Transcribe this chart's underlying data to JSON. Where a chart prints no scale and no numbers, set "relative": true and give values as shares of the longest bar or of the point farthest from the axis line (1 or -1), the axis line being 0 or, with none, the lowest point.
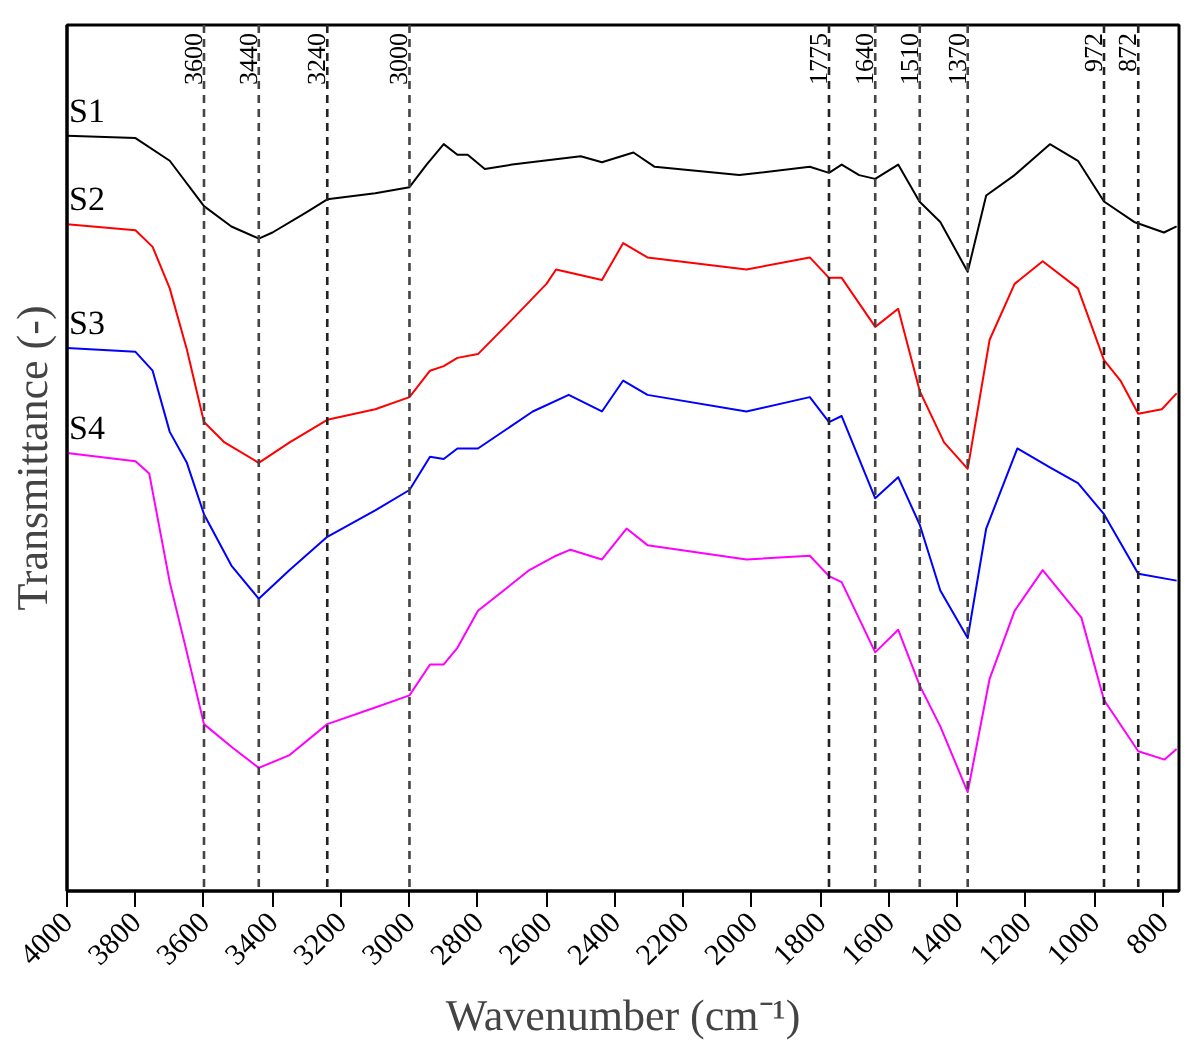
{
  "chart_data": {
    "type": "line",
    "xlabel": "Wavenumber (cm⁻¹)",
    "ylabel": "Transmittance (-)",
    "relative": true,
    "xlim": [
      4000,
      753
    ],
    "xticks": [
      4000,
      3800,
      3600,
      3400,
      3200,
      3000,
      2800,
      2600,
      2400,
      2200,
      2000,
      1800,
      1600,
      1400,
      1200,
      1000,
      800
    ],
    "series": [
      {
        "name": "S1",
        "color": "#000000",
        "x": [
          4000,
          3800,
          3700,
          3600,
          3520,
          3440,
          3400,
          3300,
          3240,
          3100,
          3000,
          2950,
          2900,
          2860,
          2830,
          2780,
          2700,
          2500,
          2438,
          2346,
          2284,
          2037,
          1831,
          1775,
          1738,
          1687,
          1640,
          1573,
          1511,
          1450,
          1370,
          1316,
          1233,
          1130,
          1048,
          972,
          884,
          797,
          760
        ],
        "values": [
          1.0,
          0.997,
          0.967,
          0.907,
          0.88,
          0.864,
          0.872,
          0.899,
          0.916,
          0.924,
          0.932,
          0.962,
          0.989,
          0.975,
          0.975,
          0.956,
          0.962,
          0.973,
          0.965,
          0.978,
          0.959,
          0.948,
          0.959,
          0.951,
          0.962,
          0.948,
          0.943,
          0.962,
          0.913,
          0.886,
          0.82,
          0.921,
          0.948,
          0.989,
          0.967,
          0.913,
          0.886,
          0.872,
          0.88
        ]
      },
      {
        "name": "S2",
        "color": "#ff0000",
        "x": [
          4000,
          3800,
          3750,
          3700,
          3650,
          3600,
          3540,
          3440,
          3350,
          3240,
          3100,
          3000,
          2940,
          2900,
          2860,
          2800,
          2700,
          2600,
          2572,
          2438,
          2376,
          2305,
          2016,
          1831,
          1775,
          1738,
          1640,
          1573,
          1510,
          1439,
          1370,
          1306,
          1233,
          1151,
          1048,
          972,
          924,
          872,
          803,
          760
        ],
        "values": [
          0.883,
          0.875,
          0.853,
          0.798,
          0.717,
          0.621,
          0.594,
          0.567,
          0.594,
          0.624,
          0.638,
          0.654,
          0.689,
          0.695,
          0.706,
          0.711,
          0.757,
          0.804,
          0.823,
          0.809,
          0.858,
          0.839,
          0.823,
          0.839,
          0.812,
          0.812,
          0.747,
          0.771,
          0.662,
          0.594,
          0.559,
          0.73,
          0.804,
          0.834,
          0.798,
          0.703,
          0.676,
          0.632,
          0.638,
          0.659
        ]
      },
      {
        "name": "S3",
        "color": "#0000ff",
        "x": [
          4000,
          3800,
          3750,
          3700,
          3650,
          3600,
          3520,
          3440,
          3350,
          3240,
          3100,
          3000,
          2940,
          2900,
          2860,
          2800,
          2640,
          2535,
          2438,
          2376,
          2305,
          2016,
          1831,
          1775,
          1738,
          1640,
          1573,
          1510,
          1450,
          1370,
          1316,
          1225,
          1130,
          1048,
          972,
          872,
          760
        ],
        "values": [
          0.719,
          0.714,
          0.689,
          0.608,
          0.567,
          0.499,
          0.431,
          0.387,
          0.425,
          0.469,
          0.504,
          0.531,
          0.575,
          0.572,
          0.586,
          0.586,
          0.635,
          0.657,
          0.635,
          0.676,
          0.657,
          0.635,
          0.654,
          0.621,
          0.629,
          0.52,
          0.548,
          0.485,
          0.398,
          0.335,
          0.48,
          0.586,
          0.561,
          0.54,
          0.499,
          0.42,
          0.411
        ]
      },
      {
        "name": "S4",
        "color": "#ff00ff",
        "x": [
          4000,
          3800,
          3760,
          3700,
          3650,
          3600,
          3520,
          3440,
          3350,
          3240,
          3100,
          3000,
          2940,
          2900,
          2860,
          2800,
          2650,
          2572,
          2530,
          2438,
          2366,
          2305,
          2016,
          1831,
          1775,
          1738,
          1640,
          1573,
          1510,
          1450,
          1370,
          1306,
          1233,
          1151,
          1038,
          972,
          872,
          795,
          760
        ],
        "values": [
          0.58,
          0.569,
          0.553,
          0.409,
          0.316,
          0.221,
          0.191,
          0.163,
          0.18,
          0.221,
          0.243,
          0.259,
          0.3,
          0.3,
          0.322,
          0.371,
          0.425,
          0.444,
          0.452,
          0.439,
          0.48,
          0.458,
          0.439,
          0.444,
          0.417,
          0.409,
          0.316,
          0.346,
          0.272,
          0.218,
          0.131,
          0.281,
          0.371,
          0.425,
          0.362,
          0.253,
          0.185,
          0.174,
          0.188
        ]
      }
    ],
    "ref_lines": [
      {
        "axis": "x",
        "value": 3600,
        "label": "3600",
        "color": "#444444",
        "line_style": "dashed"
      },
      {
        "axis": "x",
        "value": 3440,
        "label": "3440",
        "color": "#444444",
        "line_style": "dashed"
      },
      {
        "axis": "x",
        "value": 3240,
        "label": "3240",
        "color": "#222222",
        "line_style": "dashed"
      },
      {
        "axis": "x",
        "value": 3000,
        "label": "3000",
        "color": "#444444",
        "line_style": "dashed"
      },
      {
        "axis": "x",
        "value": 1775,
        "label": "1775",
        "color": "#222222",
        "line_style": "dashed"
      },
      {
        "axis": "x",
        "value": 1640,
        "label": "1640",
        "color": "#444444",
        "line_style": "dashed"
      },
      {
        "axis": "x",
        "value": 1510,
        "label": "1510",
        "color": "#444444",
        "line_style": "dashed"
      },
      {
        "axis": "x",
        "value": 1370,
        "label": "1370",
        "color": "#444444",
        "line_style": "dashed"
      },
      {
        "axis": "x",
        "value": 972,
        "label": "972",
        "color": "#222222",
        "line_style": "dashed"
      },
      {
        "axis": "x",
        "value": 872,
        "label": "872",
        "color": "#222222",
        "line_style": "dashed"
      }
    ]
  }
}
